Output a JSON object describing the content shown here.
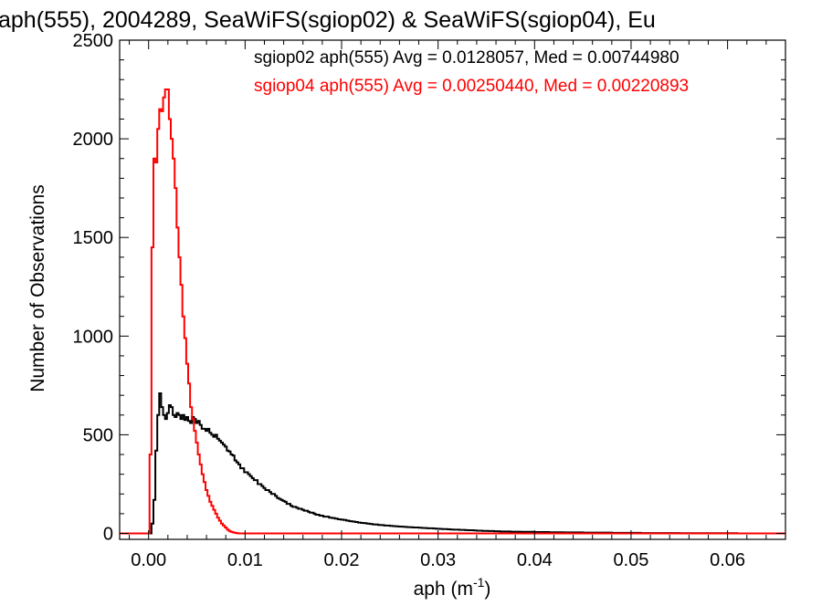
{
  "chart_data": {
    "type": "histogram-step",
    "title": "aph(555), 2004289, SeaWiFS(sgiop02) & SeaWiFS(sgiop04), Eu",
    "xlabel_main": "aph (m",
    "xlabel_sup": "-1",
    "xlabel_close": ")",
    "ylabel": "Number of Observations",
    "xlim": [
      -0.003,
      0.066
    ],
    "ylim": [
      -30,
      2500
    ],
    "x_ticks": [
      0.0,
      0.01,
      0.02,
      0.03,
      0.04,
      0.05,
      0.06
    ],
    "x_tick_labels": [
      "0.00",
      "0.01",
      "0.02",
      "0.03",
      "0.04",
      "0.05",
      "0.06"
    ],
    "y_ticks": [
      0,
      500,
      1000,
      1500,
      2000,
      2500
    ],
    "y_tick_labels": [
      "0",
      "500",
      "1000",
      "1500",
      "2000",
      "2500"
    ],
    "grid": false,
    "legend_position": "top-right",
    "series": [
      {
        "name": "sgiop02 aph(555) Avg = 0.0128057, Med = 0.00744980",
        "color": "#000000",
        "points": [
          [
            -0.003,
            0
          ],
          [
            0.0001,
            0
          ],
          [
            0.0003,
            50
          ],
          [
            0.0005,
            170
          ],
          [
            0.0007,
            420
          ],
          [
            0.0009,
            600
          ],
          [
            0.0011,
            710
          ],
          [
            0.0013,
            640
          ],
          [
            0.0015,
            600
          ],
          [
            0.0017,
            580
          ],
          [
            0.0019,
            610
          ],
          [
            0.0021,
            650
          ],
          [
            0.0023,
            640
          ],
          [
            0.0025,
            600
          ],
          [
            0.0027,
            590
          ],
          [
            0.0029,
            610
          ],
          [
            0.0031,
            600
          ],
          [
            0.0033,
            580
          ],
          [
            0.0035,
            600
          ],
          [
            0.0037,
            575
          ],
          [
            0.0039,
            590
          ],
          [
            0.0041,
            570
          ],
          [
            0.0043,
            560
          ],
          [
            0.0045,
            590
          ],
          [
            0.0047,
            580
          ],
          [
            0.0049,
            560
          ],
          [
            0.0051,
            570
          ],
          [
            0.0053,
            550
          ],
          [
            0.0055,
            530
          ],
          [
            0.0057,
            530
          ],
          [
            0.0059,
            520
          ],
          [
            0.0061,
            530
          ],
          [
            0.0063,
            510
          ],
          [
            0.0065,
            500
          ],
          [
            0.0067,
            490
          ],
          [
            0.0069,
            500
          ],
          [
            0.0071,
            480
          ],
          [
            0.0073,
            470
          ],
          [
            0.0075,
            460
          ],
          [
            0.0077,
            450
          ],
          [
            0.0079,
            440
          ],
          [
            0.0081,
            420
          ],
          [
            0.0083,
            415
          ],
          [
            0.0085,
            400
          ],
          [
            0.0087,
            395
          ],
          [
            0.0089,
            370
          ],
          [
            0.0091,
            360
          ],
          [
            0.0093,
            350
          ],
          [
            0.0095,
            330
          ],
          [
            0.0097,
            330
          ],
          [
            0.0099,
            310
          ],
          [
            0.0101,
            310
          ],
          [
            0.0103,
            300
          ],
          [
            0.0105,
            290
          ],
          [
            0.0107,
            280
          ],
          [
            0.0109,
            270
          ],
          [
            0.0111,
            270
          ],
          [
            0.0113,
            250
          ],
          [
            0.0115,
            250
          ],
          [
            0.0117,
            240
          ],
          [
            0.0119,
            230
          ],
          [
            0.0121,
            220
          ],
          [
            0.0123,
            220
          ],
          [
            0.0125,
            210
          ],
          [
            0.0127,
            200
          ],
          [
            0.0129,
            200
          ],
          [
            0.0131,
            190
          ],
          [
            0.0133,
            180
          ],
          [
            0.0135,
            175
          ],
          [
            0.0137,
            170
          ],
          [
            0.0139,
            165
          ],
          [
            0.0141,
            160
          ],
          [
            0.0143,
            150
          ],
          [
            0.0145,
            150
          ],
          [
            0.0147,
            140
          ],
          [
            0.0149,
            135
          ],
          [
            0.0151,
            135
          ],
          [
            0.0153,
            130
          ],
          [
            0.0155,
            125
          ],
          [
            0.0157,
            125
          ],
          [
            0.0159,
            120
          ],
          [
            0.0161,
            115
          ],
          [
            0.0163,
            115
          ],
          [
            0.0165,
            110
          ],
          [
            0.0167,
            105
          ],
          [
            0.0169,
            105
          ],
          [
            0.0171,
            100
          ],
          [
            0.0173,
            95
          ],
          [
            0.0175,
            95
          ],
          [
            0.0177,
            90
          ],
          [
            0.0179,
            90
          ],
          [
            0.0181,
            85
          ],
          [
            0.0184,
            85
          ],
          [
            0.0187,
            80
          ],
          [
            0.019,
            78
          ],
          [
            0.0193,
            75
          ],
          [
            0.0196,
            72
          ],
          [
            0.0199,
            70
          ],
          [
            0.0202,
            68
          ],
          [
            0.0205,
            65
          ],
          [
            0.0208,
            62
          ],
          [
            0.0211,
            60
          ],
          [
            0.0214,
            58
          ],
          [
            0.0217,
            55
          ],
          [
            0.022,
            53
          ],
          [
            0.0223,
            52
          ],
          [
            0.0226,
            50
          ],
          [
            0.0229,
            48
          ],
          [
            0.0232,
            46
          ],
          [
            0.0235,
            45
          ],
          [
            0.0238,
            43
          ],
          [
            0.0241,
            42
          ],
          [
            0.0244,
            40
          ],
          [
            0.0247,
            40
          ],
          [
            0.025,
            38
          ],
          [
            0.0253,
            37
          ],
          [
            0.0256,
            36
          ],
          [
            0.0259,
            35
          ],
          [
            0.0262,
            34
          ],
          [
            0.0265,
            33
          ],
          [
            0.0268,
            32
          ],
          [
            0.0271,
            31
          ],
          [
            0.0274,
            30
          ],
          [
            0.0277,
            30
          ],
          [
            0.028,
            29
          ],
          [
            0.0283,
            28
          ],
          [
            0.0286,
            27
          ],
          [
            0.0289,
            26
          ],
          [
            0.0292,
            26
          ],
          [
            0.0295,
            25
          ],
          [
            0.0298,
            24
          ],
          [
            0.0301,
            23
          ],
          [
            0.0304,
            22
          ],
          [
            0.0307,
            22
          ],
          [
            0.031,
            21
          ],
          [
            0.0313,
            20
          ],
          [
            0.0316,
            19
          ],
          [
            0.0319,
            19
          ],
          [
            0.0322,
            18
          ],
          [
            0.0325,
            18
          ],
          [
            0.0328,
            17
          ],
          [
            0.0331,
            16
          ],
          [
            0.0334,
            16
          ],
          [
            0.0337,
            15
          ],
          [
            0.034,
            14
          ],
          [
            0.0343,
            14
          ],
          [
            0.0346,
            13
          ],
          [
            0.0349,
            13
          ],
          [
            0.0352,
            12
          ],
          [
            0.0355,
            12
          ],
          [
            0.0358,
            11
          ],
          [
            0.0361,
            11
          ],
          [
            0.0364,
            10
          ],
          [
            0.0367,
            10
          ],
          [
            0.037,
            10
          ],
          [
            0.0375,
            9
          ],
          [
            0.038,
            9
          ],
          [
            0.0385,
            8
          ],
          [
            0.039,
            8
          ],
          [
            0.0395,
            8
          ],
          [
            0.04,
            7
          ],
          [
            0.0405,
            7
          ],
          [
            0.041,
            7
          ],
          [
            0.0415,
            6
          ],
          [
            0.042,
            6
          ],
          [
            0.0425,
            6
          ],
          [
            0.043,
            5
          ],
          [
            0.0435,
            5
          ],
          [
            0.044,
            5
          ],
          [
            0.0445,
            5
          ],
          [
            0.045,
            4
          ],
          [
            0.0455,
            4
          ],
          [
            0.046,
            4
          ],
          [
            0.047,
            4
          ],
          [
            0.048,
            3
          ],
          [
            0.049,
            3
          ],
          [
            0.05,
            3
          ],
          [
            0.051,
            2
          ],
          [
            0.052,
            2
          ],
          [
            0.053,
            2
          ],
          [
            0.054,
            2
          ],
          [
            0.055,
            1
          ],
          [
            0.057,
            1
          ],
          [
            0.059,
            1
          ],
          [
            0.061,
            0
          ],
          [
            0.063,
            0
          ],
          [
            0.066,
            0
          ]
        ]
      },
      {
        "name": "sgiop04 aph(555) Avg = 0.00250440, Med = 0.00220893",
        "color": "#ff0000",
        "points": [
          [
            -0.003,
            0
          ],
          [
            0.0,
            0
          ],
          [
            0.0001,
            400
          ],
          [
            0.0003,
            1450
          ],
          [
            0.0005,
            1900
          ],
          [
            0.0007,
            1880
          ],
          [
            0.0009,
            2050
          ],
          [
            0.0011,
            2150
          ],
          [
            0.0013,
            2140
          ],
          [
            0.0015,
            2210
          ],
          [
            0.0017,
            2250
          ],
          [
            0.0019,
            2250
          ],
          [
            0.0021,
            2100
          ],
          [
            0.0023,
            2000
          ],
          [
            0.0025,
            1900
          ],
          [
            0.0027,
            1750
          ],
          [
            0.0029,
            1550
          ],
          [
            0.0031,
            1400
          ],
          [
            0.0033,
            1260
          ],
          [
            0.0035,
            1100
          ],
          [
            0.0037,
            990
          ],
          [
            0.0039,
            860
          ],
          [
            0.0041,
            760
          ],
          [
            0.0043,
            640
          ],
          [
            0.0045,
            580
          ],
          [
            0.0047,
            520
          ],
          [
            0.0049,
            460
          ],
          [
            0.0051,
            400
          ],
          [
            0.0053,
            350
          ],
          [
            0.0055,
            300
          ],
          [
            0.0057,
            260
          ],
          [
            0.0059,
            220
          ],
          [
            0.0061,
            190
          ],
          [
            0.0063,
            160
          ],
          [
            0.0065,
            140
          ],
          [
            0.0067,
            120
          ],
          [
            0.0069,
            100
          ],
          [
            0.0071,
            80
          ],
          [
            0.0073,
            65
          ],
          [
            0.0075,
            50
          ],
          [
            0.0077,
            40
          ],
          [
            0.0079,
            30
          ],
          [
            0.0081,
            20
          ],
          [
            0.0083,
            13
          ],
          [
            0.0085,
            8
          ],
          [
            0.0087,
            5
          ],
          [
            0.0089,
            3
          ],
          [
            0.0091,
            1
          ],
          [
            0.0093,
            0
          ],
          [
            0.066,
            0
          ]
        ]
      }
    ]
  }
}
